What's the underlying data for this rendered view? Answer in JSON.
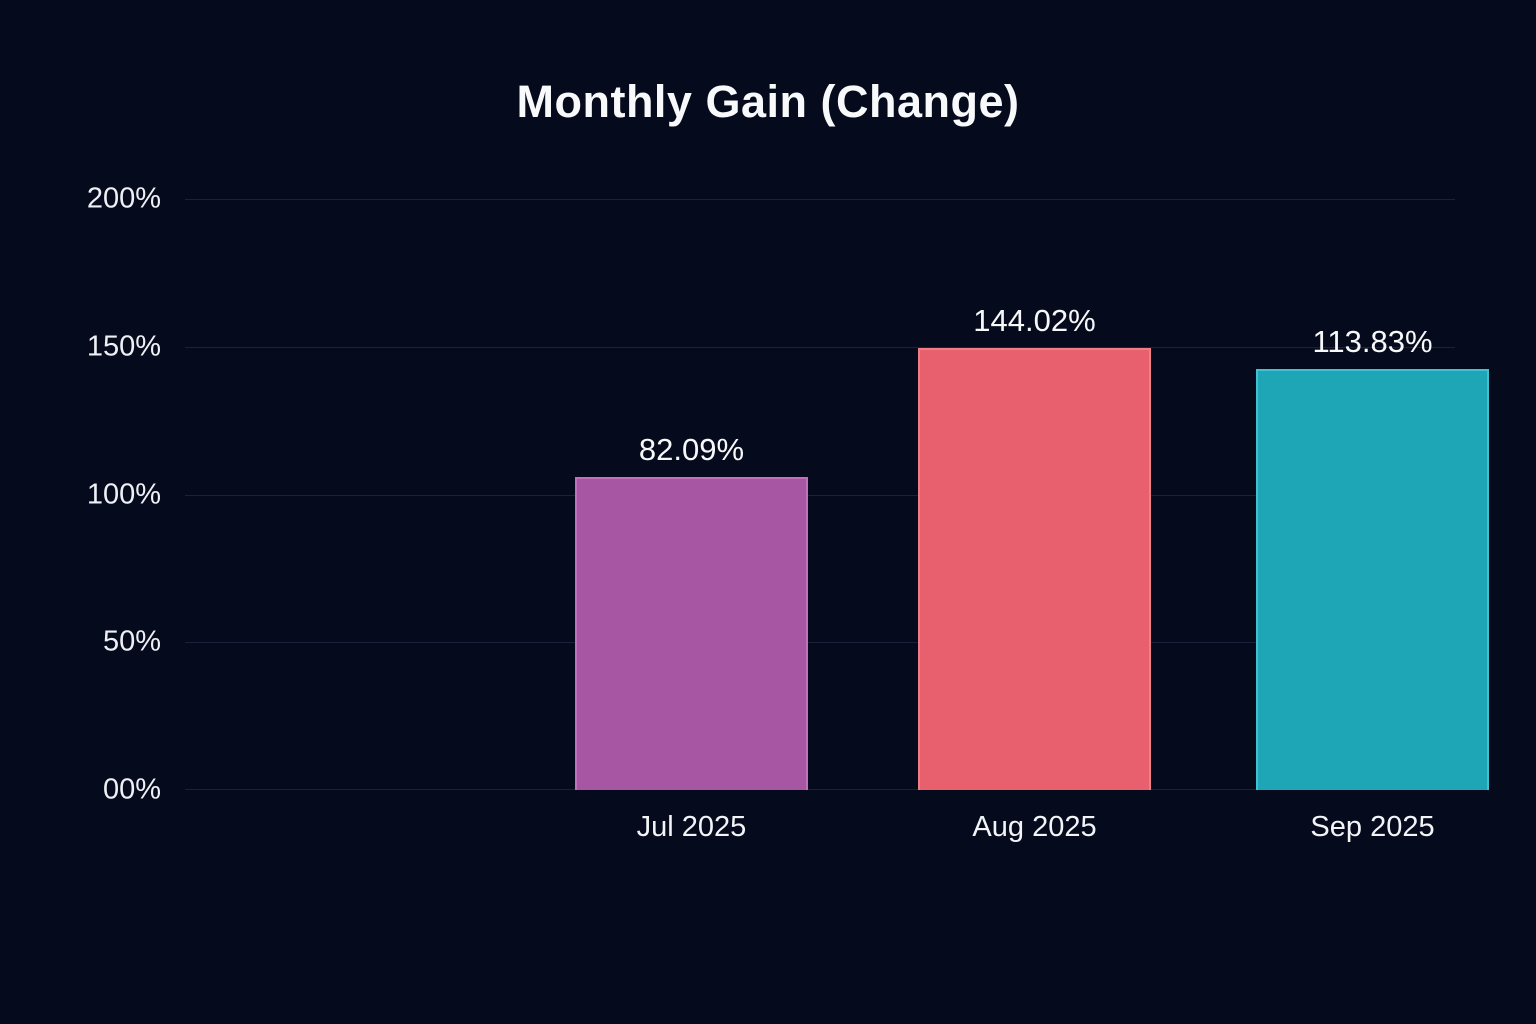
{
  "chart_data": {
    "type": "bar",
    "title": "Monthly Gain (Change)",
    "categories": [
      "Jul 2025",
      "Aug 2025",
      "Sep 2025"
    ],
    "values": [
      82.09,
      144.02,
      113.83
    ],
    "value_labels": [
      "82.09%",
      "144.02%",
      "113.83%"
    ],
    "y_ticks": [
      "200%",
      "150%",
      "100%",
      "50%",
      "00%"
    ],
    "ylim": [
      0,
      200
    ],
    "bar_visual_height_pct": [
      105.9,
      149.7,
      142.5
    ],
    "bar_colors": [
      "#a756a4",
      "#e85f6e",
      "#1fa6b6"
    ],
    "bar_edge_colors": [
      "#c36fbc",
      "#ee7e88",
      "#41c2d1"
    ],
    "grid": "horizontal-only",
    "legend": "none",
    "background_color": "#050a1c",
    "text_color": "#f6f7f9"
  }
}
